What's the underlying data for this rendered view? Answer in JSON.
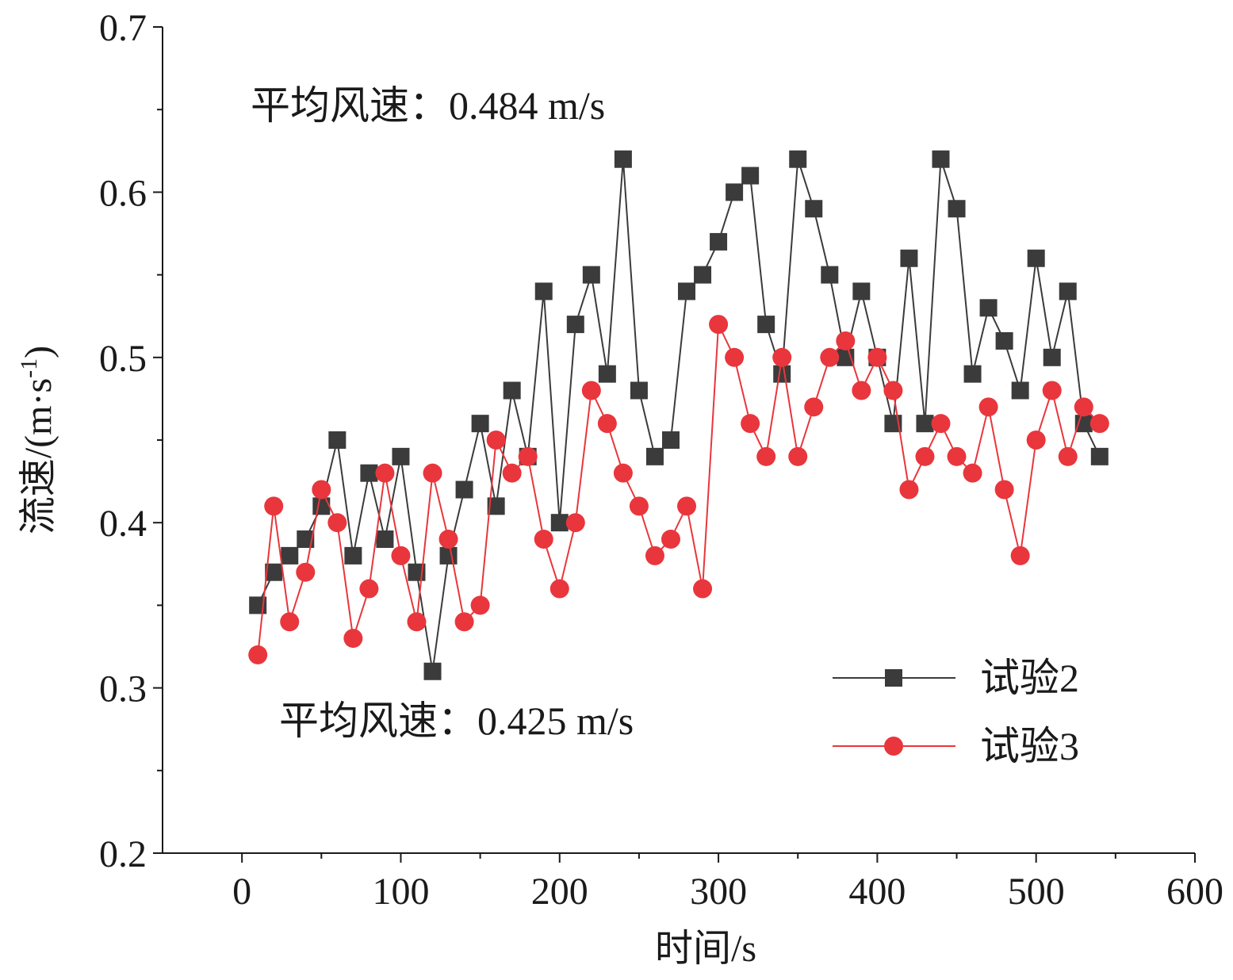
{
  "chart_data": {
    "type": "line",
    "title": "",
    "xlabel": "时间/s",
    "ylabel": "流速/(m·s",
    "ylabel_sup": "-1",
    "ylabel_close": ")",
    "xlim": [
      -50,
      600
    ],
    "ylim": [
      0.2,
      0.7
    ],
    "xticks": [
      0,
      100,
      200,
      300,
      400,
      500,
      600
    ],
    "xtick_labels": [
      "0",
      "100",
      "200",
      "300",
      "400",
      "500",
      "600"
    ],
    "yticks": [
      0.2,
      0.3,
      0.4,
      0.5,
      0.6,
      0.7
    ],
    "ytick_labels": [
      "0.2",
      "0.3",
      "0.4",
      "0.5",
      "0.6",
      "0.7"
    ],
    "x": [
      10,
      20,
      30,
      40,
      50,
      60,
      70,
      80,
      90,
      100,
      110,
      120,
      130,
      140,
      150,
      160,
      170,
      180,
      190,
      200,
      210,
      220,
      230,
      240,
      250,
      260,
      270,
      280,
      290,
      300,
      310,
      320,
      330,
      340,
      350,
      360,
      370,
      380,
      390,
      400,
      410,
      420,
      430,
      440,
      450,
      460,
      470,
      480,
      490,
      500,
      510,
      520,
      530,
      540
    ],
    "series": [
      {
        "name": "试验2",
        "marker": "square",
        "color": "#3b3b3b",
        "values": [
          0.35,
          0.37,
          0.38,
          0.39,
          0.41,
          0.45,
          0.38,
          0.43,
          0.39,
          0.44,
          0.37,
          0.31,
          0.38,
          0.42,
          0.46,
          0.41,
          0.48,
          0.44,
          0.54,
          0.4,
          0.52,
          0.55,
          0.49,
          0.62,
          0.48,
          0.44,
          0.45,
          0.54,
          0.55,
          0.57,
          0.6,
          0.61,
          0.52,
          0.49,
          0.62,
          0.59,
          0.55,
          0.5,
          0.54,
          0.5,
          0.46,
          0.56,
          0.46,
          0.62,
          0.59,
          0.49,
          0.53,
          0.51,
          0.48,
          0.56,
          0.5,
          0.54,
          0.46,
          0.44
        ]
      },
      {
        "name": "试验3",
        "marker": "circle",
        "color": "#e8363c",
        "values": [
          0.32,
          0.41,
          0.34,
          0.37,
          0.42,
          0.4,
          0.33,
          0.36,
          0.43,
          0.38,
          0.34,
          0.43,
          0.39,
          0.34,
          0.35,
          0.45,
          0.43,
          0.44,
          0.39,
          0.36,
          0.4,
          0.48,
          0.46,
          0.43,
          0.41,
          0.38,
          0.39,
          0.41,
          0.36,
          0.52,
          0.5,
          0.46,
          0.44,
          0.5,
          0.44,
          0.47,
          0.5,
          0.51,
          0.48,
          0.5,
          0.48,
          0.42,
          0.44,
          0.46,
          0.44,
          0.43,
          0.47,
          0.42,
          0.38,
          0.45,
          0.48,
          0.44,
          0.47,
          0.46
        ]
      }
    ],
    "annotations": [
      "平均风速：0.484 m/s",
      "平均风速：0.425 m/s"
    ],
    "legend": "bottom-right",
    "grid": false
  }
}
